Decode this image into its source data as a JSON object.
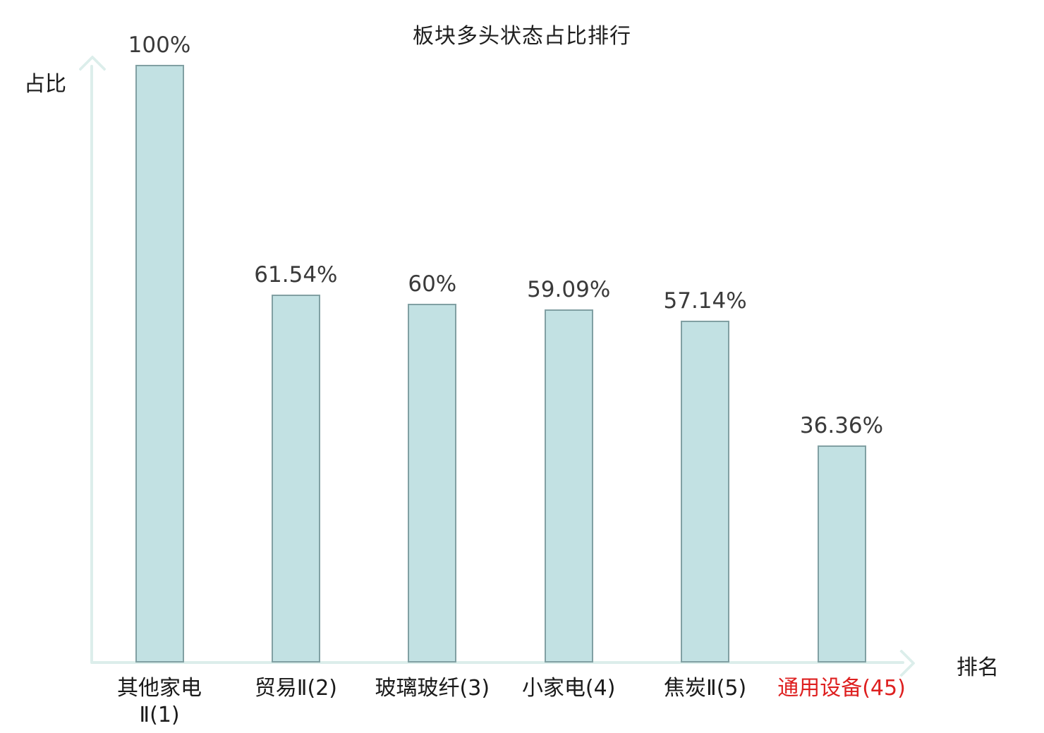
{
  "chart_data": {
    "type": "bar",
    "title": "板块多头状态占比排行",
    "xlabel": "排名",
    "ylabel": "占比",
    "categories": [
      "其他家电Ⅱ(1)",
      "贸易Ⅱ(2)",
      "玻璃玻纤(3)",
      "小家电(4)",
      "焦炭Ⅱ(5)",
      "通用设备(45)"
    ],
    "x_tick_display": [
      "其他家电\nⅡ(1)",
      "贸易Ⅱ(2)",
      "玻璃玻纤(3)",
      "小家电(4)",
      "焦炭Ⅱ(5)",
      "通用设备(45)"
    ],
    "values": [
      100,
      61.54,
      60,
      59.09,
      57.14,
      36.36
    ],
    "value_labels": [
      "100%",
      "61.54%",
      "60%",
      "59.09%",
      "57.14%",
      "36.36%"
    ],
    "ylim": [
      0,
      100
    ],
    "grid": false,
    "legend": null,
    "highlight_index": 5,
    "colors": {
      "bar_fill": "#c2e1e3",
      "bar_border": "#81a0a3",
      "axis": "#dceeeb",
      "value_text": "#3a3a3a",
      "tick_text": "#1a1a1a",
      "highlight_text": "#de2020",
      "title_text": "#1f1f1f"
    }
  }
}
